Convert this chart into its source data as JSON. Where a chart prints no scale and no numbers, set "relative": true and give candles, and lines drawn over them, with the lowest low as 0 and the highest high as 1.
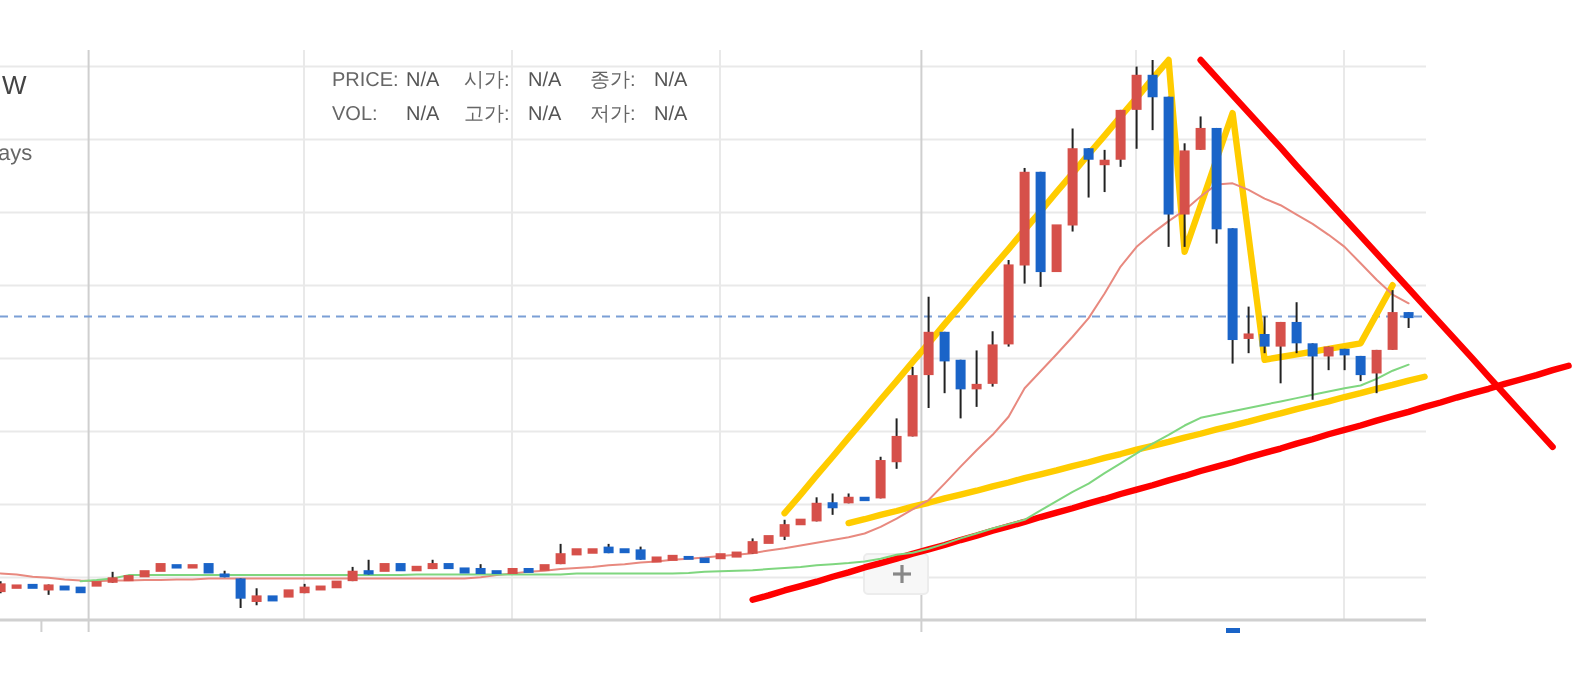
{
  "chart_data": {
    "type": "candlestick",
    "title": "W",
    "subtitle": "ays",
    "annotations": [
      "PRICE:",
      "N/A",
      "시가:",
      "N/A",
      "종가:",
      "N/A",
      "VOL:",
      "N/A",
      "고가:",
      "N/A",
      "저가:",
      "N/A"
    ],
    "relative": true,
    "grid": true,
    "categories": [
      null,
      null,
      null,
      null,
      null,
      null,
      null,
      null,
      null,
      null,
      null,
      null,
      null,
      null,
      null,
      null,
      null,
      null,
      null,
      null,
      null,
      null,
      null,
      null,
      null,
      null,
      null,
      null,
      null,
      null,
      null,
      null,
      null,
      null,
      null,
      null,
      null,
      null,
      null,
      null,
      null,
      null,
      null,
      null,
      null,
      null,
      null,
      null,
      null,
      null,
      null,
      null,
      null,
      null,
      null,
      null,
      null,
      null,
      null,
      null,
      null,
      null,
      null,
      null,
      null,
      null,
      null,
      null,
      null,
      null,
      null,
      null,
      null,
      null,
      null,
      null,
      null,
      null,
      null,
      null,
      null,
      null,
      null,
      null,
      null,
      null,
      null,
      null,
      null,
      null,
      null,
      null,
      null,
      null,
      null,
      null,
      null,
      null,
      null
    ],
    "ohlc": [
      [
        0.029,
        0.049,
        0.027,
        0.045
      ],
      [
        0.035,
        0.043,
        0.035,
        0.043
      ],
      [
        0.044,
        0.044,
        0.035,
        0.035
      ],
      [
        0.032,
        0.043,
        0.024,
        0.043
      ],
      [
        0.041,
        0.041,
        0.032,
        0.032
      ],
      [
        0.039,
        0.039,
        0.027,
        0.027
      ],
      [
        0.039,
        0.049,
        0.039,
        0.049
      ],
      [
        0.046,
        0.066,
        0.046,
        0.056
      ],
      [
        0.049,
        0.06,
        0.049,
        0.06
      ],
      [
        0.056,
        0.069,
        0.056,
        0.069
      ],
      [
        0.066,
        0.082,
        0.066,
        0.082
      ],
      [
        0.08,
        0.08,
        0.072,
        0.072
      ],
      [
        0.072,
        0.08,
        0.072,
        0.08
      ],
      [
        0.082,
        0.082,
        0.063,
        0.063
      ],
      [
        0.063,
        0.068,
        0.056,
        0.056
      ],
      [
        0.054,
        0.054,
        0,
        0.017
      ],
      [
        0.011,
        0.036,
        0.005,
        0.023
      ],
      [
        0.023,
        0.023,
        0.012,
        0.012
      ],
      [
        0.019,
        0.034,
        0.019,
        0.034
      ],
      [
        0.027,
        0.044,
        0.027,
        0.039
      ],
      [
        0.032,
        0.041,
        0.032,
        0.041
      ],
      [
        0.036,
        0.05,
        0.036,
        0.05
      ],
      [
        0.049,
        0.075,
        0.049,
        0.068
      ],
      [
        0.069,
        0.088,
        0.061,
        0.061
      ],
      [
        0.066,
        0.082,
        0.066,
        0.082
      ],
      [
        0.082,
        0.082,
        0.067,
        0.067
      ],
      [
        0.067,
        0.077,
        0.067,
        0.077
      ],
      [
        0.071,
        0.088,
        0.071,
        0.082
      ],
      [
        0.082,
        0.082,
        0.071,
        0.071
      ],
      [
        0.074,
        0.074,
        0.063,
        0.063
      ],
      [
        0.073,
        0.08,
        0.062,
        0.062
      ],
      [
        0.069,
        0.069,
        0.062,
        0.062
      ],
      [
        0.062,
        0.073,
        0.062,
        0.073
      ],
      [
        0.073,
        0.073,
        0.064,
        0.064
      ],
      [
        0.068,
        0.08,
        0.068,
        0.08
      ],
      [
        0.08,
        0.117,
        0.08,
        0.1
      ],
      [
        0.096,
        0.109,
        0.096,
        0.109
      ],
      [
        0.099,
        0.109,
        0.099,
        0.109
      ],
      [
        0.112,
        0.117,
        0.1,
        0.1
      ],
      [
        0.109,
        0.109,
        0.1,
        0.1
      ],
      [
        0.107,
        0.112,
        0.088,
        0.088
      ],
      [
        0.083,
        0.094,
        0.083,
        0.094
      ],
      [
        0.086,
        0.097,
        0.086,
        0.097
      ],
      [
        0.095,
        0.095,
        0.088,
        0.088
      ],
      [
        0.092,
        0.092,
        0.082,
        0.082
      ],
      [
        0.089,
        0.1,
        0.089,
        0.1
      ],
      [
        0.092,
        0.103,
        0.092,
        0.103
      ],
      [
        0.099,
        0.127,
        0.099,
        0.122
      ],
      [
        0.117,
        0.133,
        0.117,
        0.133
      ],
      [
        0.13,
        0.161,
        0.124,
        0.153
      ],
      [
        0.151,
        0.163,
        0.151,
        0.163
      ],
      [
        0.158,
        0.202,
        0.158,
        0.192
      ],
      [
        0.193,
        0.209,
        0.17,
        0.182
      ],
      [
        0.191,
        0.209,
        0.191,
        0.203
      ],
      [
        0.203,
        0.203,
        0.195,
        0.195
      ],
      [
        0.2,
        0.276,
        0.2,
        0.27
      ],
      [
        0.266,
        0.346,
        0.254,
        0.314
      ],
      [
        0.313,
        0.44,
        0.313,
        0.425
      ],
      [
        0.425,
        0.568,
        0.365,
        0.504
      ],
      [
        0.504,
        0.504,
        0.392,
        0.45
      ],
      [
        0.453,
        0.453,
        0.346,
        0.399
      ],
      [
        0.399,
        0.47,
        0.367,
        0.409
      ],
      [
        0.409,
        0.505,
        0.404,
        0.481
      ],
      [
        0.481,
        0.635,
        0.477,
        0.627
      ],
      [
        0.625,
        0.803,
        0.592,
        0.796
      ],
      [
        0.796,
        0.796,
        0.586,
        0.613
      ],
      [
        0.613,
        0.7,
        0.613,
        0.7
      ],
      [
        0.698,
        0.875,
        0.687,
        0.839
      ],
      [
        0.839,
        0.839,
        0.749,
        0.818
      ],
      [
        0.808,
        0.836,
        0.759,
        0.818
      ],
      [
        0.818,
        0.909,
        0.805,
        0.909
      ],
      [
        0.909,
        0.988,
        0.838,
        0.973
      ],
      [
        0.973,
        1,
        0.872,
        0.932
      ],
      [
        0.933,
        0.933,
        0.659,
        0.718
      ],
      [
        0.718,
        0.848,
        0.659,
        0.835
      ],
      [
        0.836,
        0.897,
        0.836,
        0.876
      ],
      [
        0.876,
        0.876,
        0.665,
        0.691
      ],
      [
        0.693,
        0.693,
        0.446,
        0.489
      ],
      [
        0.491,
        0.55,
        0.465,
        0.501
      ],
      [
        0.5,
        0.532,
        0.465,
        0.477
      ],
      [
        0.477,
        0.522,
        0.41,
        0.522
      ],
      [
        0.522,
        0.558,
        0.465,
        0.483
      ],
      [
        0.483,
        0.483,
        0.38,
        0.459
      ],
      [
        0.459,
        0.477,
        0.434,
        0.477
      ],
      [
        0.473,
        0.473,
        0.434,
        0.461
      ],
      [
        0.46,
        0.46,
        0.414,
        0.425
      ],
      [
        0.428,
        0.471,
        0.392,
        0.471
      ],
      [
        0.471,
        0.58,
        0.471,
        0.54
      ],
      [
        0.54,
        0.54,
        0.511,
        0.529
      ],
      null,
      null,
      null,
      null,
      null,
      null,
      null,
      null,
      null,
      null
    ],
    "series": [
      {
        "type": "line",
        "color": "#e8897f",
        "values": [
          0.063,
          0.061,
          0.057,
          0.055,
          0.052,
          0.05,
          0.049,
          0.05,
          0.05,
          0.051,
          0.051,
          0.052,
          0.052,
          0.054,
          0.054,
          0.054,
          0.054,
          0.054,
          0.054,
          0.054,
          0.054,
          0.054,
          0.054,
          0.054,
          0.054,
          0.054,
          0.054,
          0.054,
          0.054,
          0.054,
          0.056,
          0.06,
          0.063,
          0.066,
          0.068,
          0.071,
          0.073,
          0.075,
          0.078,
          0.08,
          0.083,
          0.085,
          0.088,
          0.09,
          0.092,
          0.095,
          0.097,
          0.1,
          0.105,
          0.109,
          0.114,
          0.119,
          0.124,
          0.129,
          0.136,
          0.148,
          0.163,
          0.18,
          0.197,
          0.227,
          0.258,
          0.288,
          0.316,
          0.349,
          0.401,
          0.432,
          0.463,
          0.495,
          0.529,
          0.574,
          0.623,
          0.659,
          0.684,
          0.706,
          0.726,
          0.751,
          0.773,
          0.775,
          0.763,
          0.747,
          0.735,
          0.718,
          0.701,
          0.681,
          0.659,
          0.629,
          0.599,
          0.572,
          0.556,
          null,
          null,
          null,
          null,
          null,
          null,
          null,
          null,
          null,
          null
        ]
      },
      {
        "type": "line",
        "color": "#7fd67f",
        "values": [
          null,
          null,
          null,
          null,
          null,
          0.049,
          0.051,
          0.054,
          0.06,
          0.06,
          0.06,
          0.06,
          0.06,
          0.06,
          0.06,
          0.06,
          0.06,
          0.06,
          0.06,
          0.06,
          0.06,
          0.06,
          0.06,
          0.06,
          0.06,
          0.06,
          0.061,
          0.061,
          0.061,
          0.061,
          0.061,
          0.061,
          0.061,
          0.061,
          0.061,
          0.061,
          0.063,
          0.063,
          0.063,
          0.063,
          0.063,
          0.063,
          0.063,
          0.064,
          0.066,
          0.067,
          0.068,
          0.069,
          0.071,
          0.073,
          0.075,
          0.078,
          0.08,
          0.082,
          0.085,
          0.09,
          0.097,
          0.101,
          0.108,
          0.117,
          0.127,
          0.136,
          0.145,
          0.153,
          0.161,
          0.178,
          0.195,
          0.212,
          0.227,
          0.246,
          0.264,
          0.282,
          0.3,
          0.316,
          0.333,
          0.347,
          0.353,
          0.359,
          0.365,
          0.371,
          0.377,
          0.383,
          0.389,
          0.395,
          0.401,
          0.406,
          0.418,
          0.433,
          0.444,
          null,
          null,
          null,
          null,
          null,
          null,
          null,
          null,
          null,
          null
        ]
      },
      {
        "type": "line",
        "color": "#ffcc00",
        "values": [
          null,
          null,
          null,
          null,
          null,
          null,
          null,
          null,
          null,
          null,
          null,
          null,
          null,
          null,
          null,
          null,
          null,
          null,
          null,
          null,
          null,
          null,
          null,
          null,
          null,
          null,
          null,
          null,
          null,
          null,
          null,
          null,
          null,
          null,
          null,
          null,
          null,
          null,
          null,
          null,
          null,
          null,
          null,
          null,
          null,
          null,
          null,
          null,
          null,
          0.173,
          0.207,
          0.242,
          0.276,
          0.311,
          0.345,
          0.38,
          0.414,
          0.449,
          0.483,
          0.518,
          0.552,
          0.587,
          0.621,
          0.655,
          0.69,
          0.724,
          0.759,
          0.793,
          0.828,
          0.862,
          0.897,
          0.931,
          0.966,
          1,
          0.65,
          0.734,
          0.819,
          0.903,
          0.678,
          0.453,
          0.458,
          0.463,
          0.468,
          0.473,
          0.478,
          0.483,
          0.536,
          0.589,
          null,
          null,
          null,
          null,
          null,
          null,
          null,
          null,
          null,
          null,
          null
        ]
      },
      {
        "type": "line",
        "color": "#ffcc00",
        "values": [
          null,
          null,
          null,
          null,
          null,
          null,
          null,
          null,
          null,
          null,
          null,
          null,
          null,
          null,
          null,
          null,
          null,
          null,
          null,
          null,
          null,
          null,
          null,
          null,
          null,
          null,
          null,
          null,
          null,
          null,
          null,
          null,
          null,
          null,
          null,
          null,
          null,
          null,
          null,
          null,
          null,
          null,
          null,
          null,
          null,
          null,
          null,
          null,
          null,
          null,
          null,
          null,
          null,
          0.155,
          0.162,
          0.17,
          0.177,
          0.185,
          0.192,
          0.2,
          0.207,
          0.214,
          0.222,
          0.229,
          0.237,
          0.244,
          0.251,
          0.259,
          0.266,
          0.274,
          0.281,
          0.289,
          0.296,
          0.303,
          0.311,
          0.318,
          0.326,
          0.333,
          0.34,
          0.348,
          0.355,
          0.363,
          0.37,
          0.377,
          0.385,
          0.392,
          0.4,
          0.407,
          0.415,
          0.422,
          null,
          null,
          null,
          null,
          null,
          null,
          null,
          null,
          null
        ]
      },
      {
        "type": "line",
        "color": "#ff0000",
        "values": [
          null,
          null,
          null,
          null,
          null,
          null,
          null,
          null,
          null,
          null,
          null,
          null,
          null,
          null,
          null,
          null,
          null,
          null,
          null,
          null,
          null,
          null,
          null,
          null,
          null,
          null,
          null,
          null,
          null,
          null,
          null,
          null,
          null,
          null,
          null,
          null,
          null,
          null,
          null,
          null,
          null,
          null,
          null,
          null,
          null,
          null,
          null,
          null,
          null,
          null,
          null,
          null,
          null,
          null,
          null,
          null,
          null,
          null,
          null,
          null,
          null,
          null,
          null,
          null,
          null,
          null,
          null,
          null,
          null,
          null,
          null,
          null,
          null,
          null,
          null,
          1,
          0.968,
          0.936,
          0.904,
          0.872,
          0.84,
          0.807,
          0.775,
          0.743,
          0.711,
          0.679,
          0.647,
          0.615,
          0.583,
          0.551,
          0.519,
          0.487,
          0.455,
          0.422,
          0.39,
          0.358,
          0.326,
          0.294,
          null
        ]
      },
      {
        "type": "line",
        "color": "#ff0000",
        "values": [
          null,
          null,
          null,
          null,
          null,
          null,
          null,
          null,
          null,
          null,
          null,
          null,
          null,
          null,
          null,
          null,
          null,
          null,
          null,
          null,
          null,
          null,
          null,
          null,
          null,
          null,
          null,
          null,
          null,
          null,
          null,
          null,
          null,
          null,
          null,
          null,
          null,
          null,
          null,
          null,
          null,
          null,
          null,
          null,
          null,
          null,
          null,
          0.015,
          0.023,
          0.032,
          0.04,
          0.048,
          0.057,
          0.065,
          0.074,
          0.082,
          0.09,
          0.099,
          0.107,
          0.115,
          0.124,
          0.132,
          0.141,
          0.149,
          0.157,
          0.166,
          0.174,
          0.182,
          0.191,
          0.199,
          0.208,
          0.216,
          0.224,
          0.233,
          0.241,
          0.25,
          0.258,
          0.266,
          0.275,
          0.283,
          0.291,
          0.3,
          0.308,
          0.317,
          0.325,
          0.333,
          0.342,
          0.35,
          0.358,
          0.367,
          0.375,
          0.384,
          0.392,
          0.4,
          0.409,
          0.417,
          0.425,
          0.434,
          0.442
        ]
      }
    ],
    "ref_lines": [
      {
        "axis": "y",
        "value": 0.532,
        "color": "#7b9fd6",
        "line_style": "dashed"
      }
    ]
  }
}
